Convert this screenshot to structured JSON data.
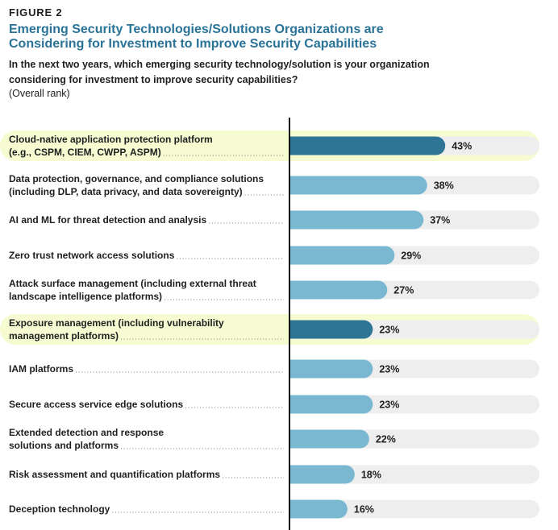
{
  "figure_label": "FIGURE 2",
  "title": "Emerging Security Technologies/Solutions Organizations are Considering for Investment to Improve Security Capabilities",
  "question": "In the next two years, which emerging security technology/solution is your organization considering for investment to improve security capabilities?",
  "note": "(Overall rank)",
  "colors": {
    "title": "#2a7398",
    "bar_default": "#7ab8d2",
    "bar_highlight": "#2e7595",
    "row_highlight": "#f6fbd2",
    "track": "#eeeeee"
  },
  "chart_data": {
    "type": "bar",
    "orientation": "horizontal",
    "title": "Emerging Security Technologies/Solutions Organizations are Considering for Investment to Improve Security Capabilities",
    "xlabel": "",
    "ylabel": "",
    "xlim": [
      0,
      69
    ],
    "unit": "%",
    "categories": [
      [
        "Cloud-native application protection platform",
        "(e.g., CSPM, CIEM, CWPP, ASPM)"
      ],
      [
        "Data protection, governance, and compliance solutions",
        "(including DLP, data privacy, and data sovereignty)"
      ],
      [
        "AI and ML for threat detection and analysis"
      ],
      [
        "Zero trust network access solutions"
      ],
      [
        "Attack surface management (including external threat",
        "landscape intelligence platforms)"
      ],
      [
        "Exposure management (including vulnerability",
        "management platforms)"
      ],
      [
        "IAM platforms"
      ],
      [
        "Secure access service edge solutions"
      ],
      [
        "Extended detection and response",
        "solutions and platforms"
      ],
      [
        "Risk assessment and quantification platforms"
      ],
      [
        "Deception technology"
      ]
    ],
    "values": [
      43,
      38,
      37,
      29,
      27,
      23,
      23,
      23,
      22,
      18,
      16
    ],
    "value_labels": [
      "43%",
      "38%",
      "37%",
      "29%",
      "27%",
      "23%",
      "23%",
      "23%",
      "22%",
      "18%",
      "16%"
    ],
    "highlighted": [
      true,
      false,
      false,
      false,
      false,
      true,
      false,
      false,
      false,
      false,
      false
    ]
  }
}
